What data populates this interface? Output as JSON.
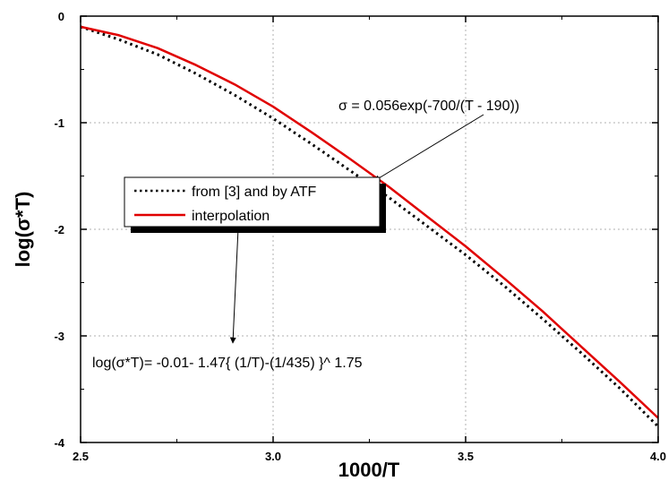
{
  "chart_data": {
    "type": "line",
    "title": "",
    "xlabel": "1000/T",
    "ylabel": "log(σ*T)",
    "xlim": [
      2.5,
      4.0
    ],
    "ylim": [
      -4,
      0
    ],
    "x_ticks": [
      2.5,
      3.0,
      3.5,
      4.0
    ],
    "x_tick_labels": [
      "2.5",
      "3.0",
      "3.5",
      "4.0"
    ],
    "y_ticks": [
      0,
      -1,
      -2,
      -3,
      -4
    ],
    "y_tick_labels": [
      "0",
      "-1",
      "-2",
      "-3",
      "-4"
    ],
    "grid": "dotted",
    "legend_placement": "middle-left",
    "series": [
      {
        "name": "from [3] and by ATF",
        "style": "dotted",
        "color": "#000000",
        "x": [
          2.5,
          2.6,
          2.7,
          2.8,
          2.9,
          3.0,
          3.1,
          3.2,
          3.3,
          3.4,
          3.5,
          3.6,
          3.7,
          3.8,
          3.9,
          4.0
        ],
        "y": [
          -0.1,
          -0.22,
          -0.36,
          -0.54,
          -0.74,
          -0.96,
          -1.2,
          -1.45,
          -1.7,
          -1.97,
          -2.24,
          -2.53,
          -2.84,
          -3.16,
          -3.49,
          -3.85
        ]
      },
      {
        "name": "interpolation",
        "style": "solid",
        "color": "#e00000",
        "x": [
          2.5,
          2.6,
          2.7,
          2.8,
          2.9,
          3.0,
          3.1,
          3.2,
          3.3,
          3.4,
          3.5,
          3.6,
          3.7,
          3.8,
          3.9,
          4.0
        ],
        "y": [
          -0.1,
          -0.18,
          -0.3,
          -0.46,
          -0.64,
          -0.85,
          -1.09,
          -1.34,
          -1.6,
          -1.88,
          -2.16,
          -2.46,
          -2.77,
          -3.1,
          -3.43,
          -3.77
        ]
      }
    ],
    "annotations": [
      {
        "text": "σ = 0.056exp(-700/(T - 190))",
        "arrow_to": [
          3.25,
          -1.43
        ]
      },
      {
        "text": "log(σ*T)= -0.01- 1.47{ (1/T)-(1/435) }^ 1.75",
        "arrow_to": [
          2.83,
          -3.1
        ]
      }
    ]
  }
}
